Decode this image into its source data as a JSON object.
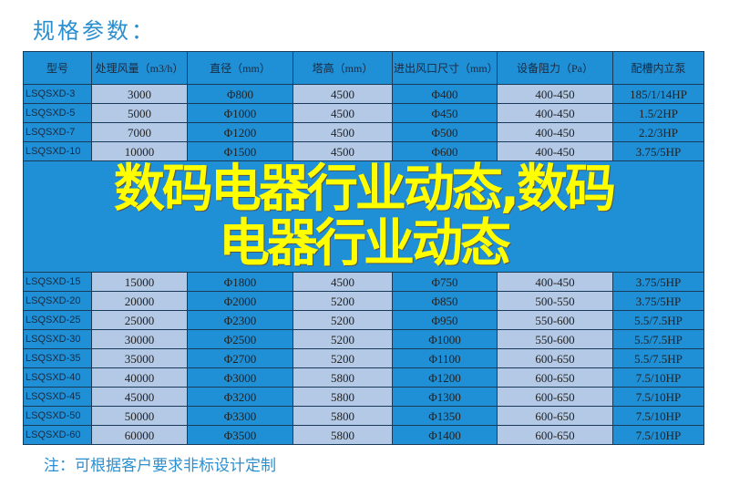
{
  "title": "规格参数：",
  "headers": [
    "型号",
    "处理风量（m3/h）",
    "直径（mm）",
    "塔高（mm）",
    "进出风口尺寸（mm）",
    "设备阻力（Pa）",
    "配槽内立泵"
  ],
  "rows": [
    [
      "LSQSXD-3",
      "3000",
      "Φ800",
      "4500",
      "Φ400",
      "400-450",
      "185/1/14HP"
    ],
    [
      "LSQSXD-5",
      "5000",
      "Φ1000",
      "4500",
      "Φ450",
      "400-450",
      "1.5/2HP"
    ],
    [
      "LSQSXD-7",
      "7000",
      "Φ1200",
      "4500",
      "Φ500",
      "400-450",
      "2.2/3HP"
    ],
    [
      "LSQSXD-10",
      "10000",
      "Φ1500",
      "4500",
      "Φ600",
      "400-450",
      "3.75/5HP"
    ],
    [
      "LSQSXD-15",
      "15000",
      "Φ1800",
      "4500",
      "Φ750",
      "400-450",
      "3.75/5HP"
    ],
    [
      "LSQSXD-20",
      "20000",
      "Φ2000",
      "5200",
      "Φ850",
      "500-550",
      "3.75/5HP"
    ],
    [
      "LSQSXD-25",
      "25000",
      "Φ2300",
      "5200",
      "Φ950",
      "550-600",
      "5.5/7.5HP"
    ],
    [
      "LSQSXD-30",
      "30000",
      "Φ2500",
      "5200",
      "Φ1000",
      "550-600",
      "5.5/7.5HP"
    ],
    [
      "LSQSXD-35",
      "35000",
      "Φ2700",
      "5200",
      "Φ1100",
      "600-650",
      "5.5/7.5HP"
    ],
    [
      "LSQSXD-40",
      "40000",
      "Φ3000",
      "5800",
      "Φ1200",
      "600-650",
      "7.5/10HP"
    ],
    [
      "LSQSXD-45",
      "45000",
      "Φ3200",
      "5800",
      "Φ1300",
      "600-650",
      "7.5/10HP"
    ],
    [
      "LSQSXD-50",
      "50000",
      "Φ3300",
      "5800",
      "Φ1350",
      "600-650",
      "7.5/10HP"
    ],
    [
      "LSQSXD-60",
      "60000",
      "Φ3500",
      "5800",
      "Φ1400",
      "600-650",
      "7.5/10HP"
    ]
  ],
  "note": "注：可根据客户要求非标设计定制",
  "overlay": {
    "line1": "数码电器行业动态,数码",
    "line2": "电器行业动态"
  },
  "colors": {
    "header": "#1f8fd6",
    "light": "#b3c9e6",
    "title": "#2a8fd0",
    "overlay": "#ffff00"
  }
}
